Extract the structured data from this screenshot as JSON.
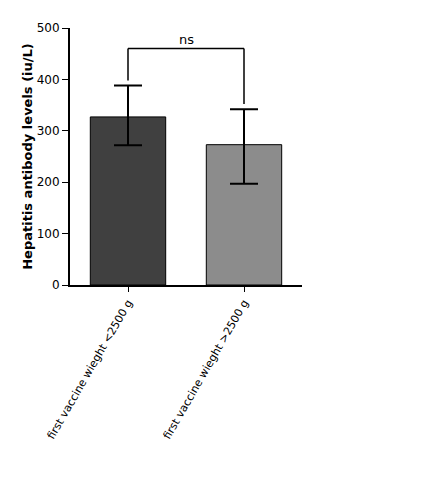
{
  "chart_data": {
    "type": "bar",
    "categories": [
      "first vaccine wieght <2500 g",
      "first vaccine wieght >2500 g"
    ],
    "values": [
      327,
      273
    ],
    "error_plus": [
      61,
      69
    ],
    "error_minus": [
      55,
      76
    ],
    "colors": [
      "#404040",
      "#8c8c8c"
    ],
    "y_label": "Hepatitis antibody levels (iu/L)",
    "annotations": [
      {
        "text": "ns",
        "between": [
          0,
          1
        ]
      }
    ],
    "ylim": [
      0,
      500
    ],
    "yticks": [
      0,
      100,
      200,
      300,
      400,
      500
    ],
    "grid": false
  }
}
